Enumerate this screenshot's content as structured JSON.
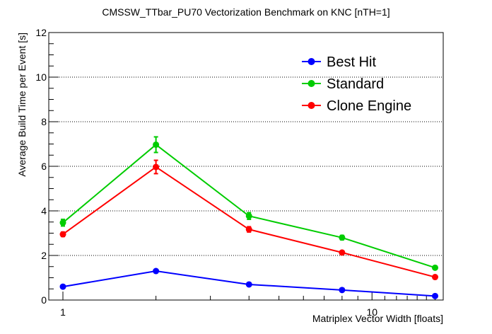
{
  "chart_data": {
    "type": "line",
    "title": "CMSSW_TTbar_PU70 Vectorization Benchmark on KNC [nTH=1]",
    "xlabel": "Matriplex Vector Width [floats]",
    "ylabel": "Average Build Time per Event [s]",
    "xscale": "log",
    "xlim": [
      0.9,
      17
    ],
    "ylim": [
      0,
      12
    ],
    "x": [
      1,
      2,
      4,
      8,
      16
    ],
    "x_tick_labels": [
      {
        "value": 1,
        "label": "1"
      },
      {
        "value": 10,
        "label": "10"
      }
    ],
    "y_ticks": [
      0,
      2,
      4,
      6,
      8,
      10,
      12
    ],
    "y_grid_values": [
      2,
      4,
      6,
      8,
      10
    ],
    "legend_position": "top-right",
    "series": [
      {
        "name": "Best Hit",
        "color": "#0000ff",
        "values": [
          0.6,
          1.3,
          0.7,
          0.45,
          0.18
        ],
        "errors": [
          0.03,
          0.05,
          0.04,
          0.03,
          0.03
        ]
      },
      {
        "name": "Standard",
        "color": "#00cc00",
        "values": [
          3.47,
          6.97,
          3.77,
          2.8,
          1.45
        ],
        "errors": [
          0.15,
          0.35,
          0.15,
          0.1,
          0.05
        ]
      },
      {
        "name": "Clone Engine",
        "color": "#ff0000",
        "values": [
          2.95,
          5.97,
          3.17,
          2.13,
          1.03
        ],
        "errors": [
          0.1,
          0.3,
          0.12,
          0.07,
          0.05
        ]
      }
    ]
  }
}
